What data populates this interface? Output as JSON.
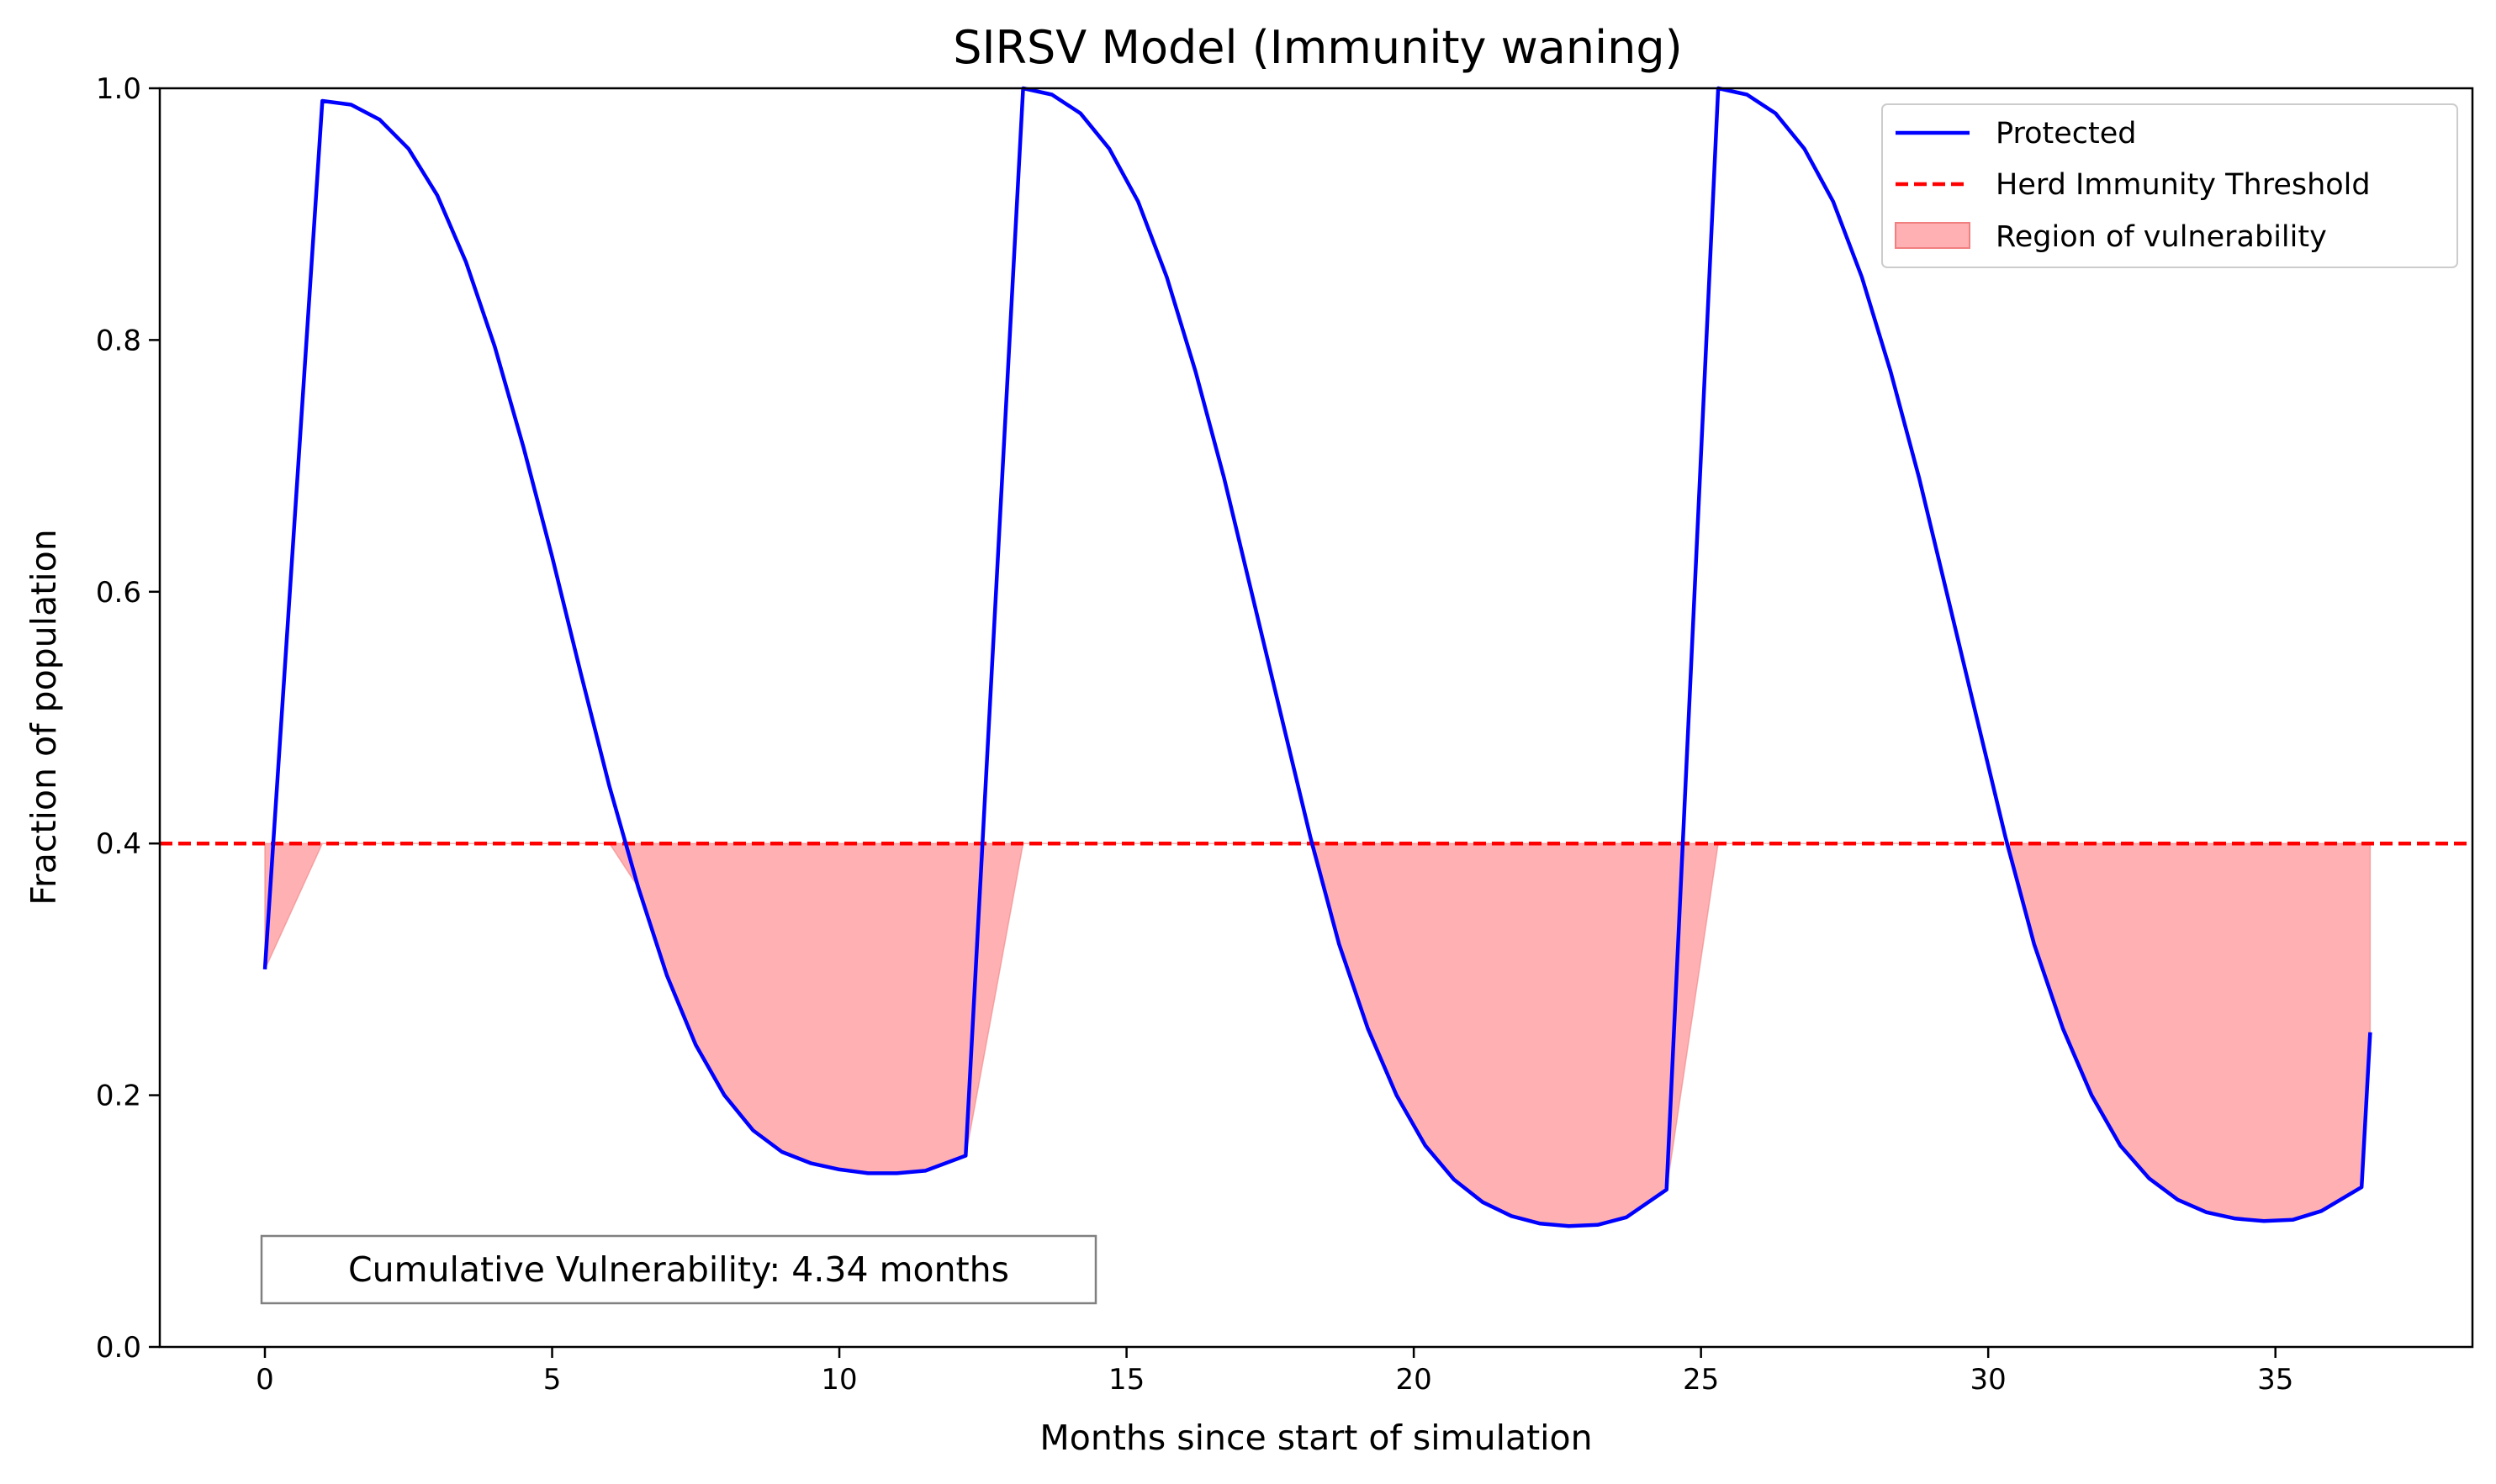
{
  "chart_data": {
    "type": "line",
    "title": "SIRSV Model (Immunity waning)",
    "xlabel": "Months since start of simulation",
    "ylabel": "Fraction of population",
    "xlim": [
      -1.83,
      38.43
    ],
    "ylim": [
      0,
      1
    ],
    "xticks": [
      0,
      5,
      10,
      15,
      20,
      25,
      30,
      35
    ],
    "yticks": [
      0.0,
      0.2,
      0.4,
      0.6,
      0.8,
      1.0
    ],
    "xtick_labels": [
      "0",
      "5",
      "10",
      "15",
      "20",
      "25",
      "30",
      "35"
    ],
    "ytick_labels": [
      "0.0",
      "0.2",
      "0.4",
      "0.6",
      "0.8",
      "1.0"
    ],
    "grid": false,
    "legend_position": "top-right",
    "threshold": 0.4,
    "series": [
      {
        "name": "Protected",
        "color": "#0000ff",
        "style": "solid",
        "x": [
          0,
          1.0,
          1.5,
          2.0,
          2.5,
          3.0,
          3.5,
          4.0,
          4.5,
          5.0,
          5.5,
          6.0,
          6.5,
          7.0,
          7.5,
          8.0,
          8.5,
          9.0,
          9.5,
          10.0,
          10.5,
          11.0,
          11.5,
          12.2,
          13.2,
          13.7,
          14.2,
          14.7,
          15.2,
          15.7,
          16.2,
          16.7,
          17.2,
          17.7,
          18.2,
          18.7,
          19.2,
          19.7,
          20.2,
          20.7,
          21.2,
          21.7,
          22.2,
          22.7,
          23.2,
          23.7,
          24.4,
          25.3,
          25.8,
          26.3,
          26.8,
          27.3,
          27.8,
          28.3,
          28.8,
          29.3,
          29.8,
          30.3,
          30.8,
          31.3,
          31.8,
          32.3,
          32.8,
          33.3,
          33.8,
          34.3,
          34.8,
          35.3,
          35.8,
          36.5,
          36.65
        ],
        "y": [
          0.3,
          0.99,
          0.987,
          0.975,
          0.952,
          0.915,
          0.862,
          0.795,
          0.715,
          0.628,
          0.535,
          0.445,
          0.365,
          0.295,
          0.24,
          0.2,
          0.172,
          0.155,
          0.146,
          0.141,
          0.138,
          0.138,
          0.14,
          0.152,
          1.0,
          0.995,
          0.98,
          0.952,
          0.91,
          0.85,
          0.775,
          0.69,
          0.595,
          0.5,
          0.405,
          0.32,
          0.253,
          0.2,
          0.16,
          0.133,
          0.115,
          0.104,
          0.098,
          0.096,
          0.097,
          0.103,
          0.125,
          1.0,
          0.995,
          0.98,
          0.952,
          0.91,
          0.85,
          0.775,
          0.69,
          0.595,
          0.5,
          0.405,
          0.32,
          0.253,
          0.2,
          0.16,
          0.134,
          0.117,
          0.107,
          0.102,
          0.1,
          0.101,
          0.108,
          0.127,
          0.25
        ]
      },
      {
        "name": "Herd Immunity Threshold",
        "color": "#ff0000",
        "style": "dashed",
        "y": 0.4
      }
    ],
    "fill": {
      "name": "Region of vulnerability",
      "color": "#ffb0b3",
      "edge_color": "#f08080"
    },
    "annotation": "Cumulative Vulnerability: 4.34 months",
    "legend": [
      "Protected",
      "Herd Immunity Threshold",
      "Region of vulnerability"
    ]
  }
}
